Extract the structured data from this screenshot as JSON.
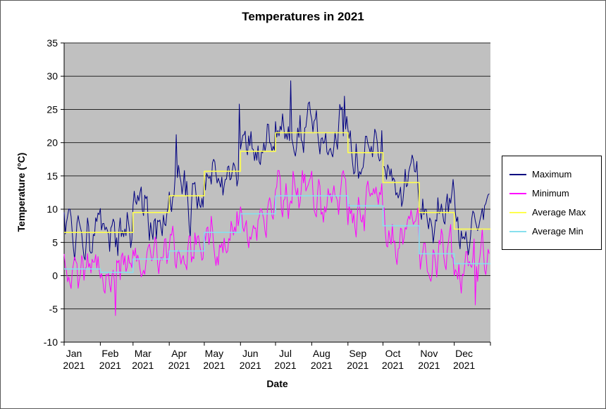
{
  "chart_data": {
    "type": "line",
    "title": "Temperatures in 2021",
    "xlabel": "Date",
    "ylabel": "Temperature (°C)",
    "ylim": [
      -10,
      35
    ],
    "y_ticks": [
      35,
      30,
      25,
      20,
      15,
      10,
      5,
      0,
      -5,
      -10
    ],
    "x_tick_months": [
      "Jan",
      "Feb",
      "Mar",
      "Apr",
      "May",
      "Jun",
      "Jul",
      "Aug",
      "Sep",
      "Oct",
      "Nov",
      "Dec"
    ],
    "x_tick_year": "2021",
    "month_days": [
      31,
      28,
      31,
      30,
      31,
      30,
      31,
      31,
      30,
      31,
      30,
      31
    ],
    "grid_on": true,
    "plot_background": "#C0C0C0",
    "grid_color": "#262626",
    "axis_color": "#000000",
    "legend_position": "right",
    "monthly_means": {
      "avg_max": [
        6.5,
        6.5,
        9.5,
        12.0,
        15.7,
        18.7,
        21.5,
        21.5,
        18.5,
        14.0,
        9.5,
        7.0
      ],
      "avg_min": [
        1.0,
        0.5,
        2.5,
        3.7,
        6.5,
        9.3,
        12.0,
        12.0,
        10.5,
        7.5,
        3.3,
        1.8
      ]
    },
    "series": [
      {
        "name": "Maximum",
        "color": "#000080",
        "kind": "daily",
        "means": "avg_max",
        "seed": 20211,
        "ar": 0.55,
        "noise": 2.7,
        "wig1": 1.3,
        "wig2": 1.7,
        "clamp": [
          -0.5,
          29.4
        ],
        "highlights": [
          {
            "day": 96,
            "value": 21.2
          },
          {
            "day": 150,
            "value": 25.8
          },
          {
            "day": 194,
            "value": 29.3
          },
          {
            "day": 240,
            "value": 27.0
          }
        ]
      },
      {
        "name": "Minimum",
        "color": "#FF00FF",
        "kind": "daily",
        "means": "avg_min",
        "seed": 777,
        "ar": 0.55,
        "noise": 2.4,
        "wig1": 1.2,
        "wig2": 1.5,
        "clamp": [
          -6.2,
          15.8
        ],
        "highlights": [
          {
            "day": 44,
            "value": -6.0
          },
          {
            "day": 196,
            "value": 15.7
          },
          {
            "day": 352,
            "value": -4.4
          }
        ]
      },
      {
        "name": "Average Max",
        "color": "#FFFF4D",
        "kind": "monthly_step",
        "means": "avg_max"
      },
      {
        "name": "Average Min",
        "color": "#87E0EE",
        "kind": "monthly_step",
        "means": "avg_min"
      }
    ],
    "legend_items": [
      "Maximum",
      "Minimum",
      "Average Max",
      "Average Min"
    ]
  }
}
